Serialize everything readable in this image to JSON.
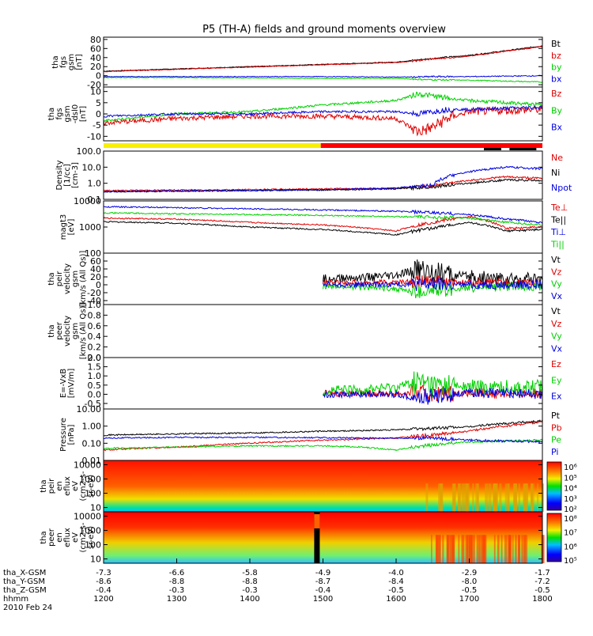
{
  "title": "P5 (TH-A) fields and ground moments overview",
  "colors": {
    "black": "#000000",
    "red": "#e00000",
    "green": "#00d000",
    "blue": "#0000e0",
    "yellow": "#f8f000",
    "brightred": "#ff0000"
  },
  "chart_data": [
    {
      "type": "line",
      "panel": "fgs_gsm",
      "ylabel_lines": [
        "tha",
        "fgs",
        "gsm",
        "[nT]"
      ],
      "ylim": [
        -25,
        85
      ],
      "yticks": [
        "80",
        "60",
        "40",
        "20",
        "0",
        "-20"
      ],
      "tick_values": [
        80,
        60,
        40,
        20,
        0,
        -20
      ],
      "legend": [
        {
          "name": "Bt",
          "color": "#000000"
        },
        {
          "name": "bz",
          "color": "#e00000"
        },
        {
          "name": "by",
          "color": "#00d000"
        },
        {
          "name": "bx",
          "color": "#0000e0"
        }
      ],
      "series": [
        {
          "name": "Bt",
          "x": [
            1200,
            1300,
            1400,
            1500,
            1600,
            1630,
            1650,
            1700,
            1750,
            1800
          ],
          "values": [
            10,
            15,
            20,
            25,
            30,
            35,
            38,
            45,
            55,
            66
          ]
        },
        {
          "name": "bz",
          "x": [
            1200,
            1300,
            1400,
            1500,
            1600,
            1630,
            1650,
            1700,
            1750,
            1800
          ],
          "values": [
            9,
            14,
            19,
            24,
            29,
            33,
            37,
            43,
            54,
            64
          ]
        },
        {
          "name": "by",
          "x": [
            1200,
            1300,
            1400,
            1500,
            1600,
            1630,
            1650,
            1700,
            1750,
            1800
          ],
          "values": [
            -4,
            -4,
            -5,
            -6,
            -6,
            -8,
            -9,
            -10,
            -12,
            -14
          ]
        },
        {
          "name": "bx",
          "x": [
            1200,
            1300,
            1400,
            1500,
            1600,
            1630,
            1650,
            1700,
            1750,
            1800
          ],
          "values": [
            -2,
            -2,
            -2,
            -2,
            -3,
            -3,
            -2,
            -2,
            -1,
            0
          ]
        }
      ]
    },
    {
      "type": "line",
      "panel": "fgs_dsl",
      "ylabel_lines": [
        "tha",
        "fgs",
        "gsm",
        "-dsl0",
        "[nT]"
      ],
      "ylim": [
        -12,
        12
      ],
      "yticks": [
        "10",
        "5",
        "0",
        "-5",
        "-10"
      ],
      "tick_values": [
        10,
        5,
        0,
        -5,
        -10
      ],
      "legend": [
        {
          "name": "Bz",
          "color": "#e00000"
        },
        {
          "name": "By",
          "color": "#00d000"
        },
        {
          "name": "Bx",
          "color": "#0000e0"
        }
      ],
      "series": [
        {
          "name": "Bz",
          "x": [
            1200,
            1300,
            1400,
            1500,
            1600,
            1630,
            1650,
            1670,
            1700,
            1800
          ],
          "values": [
            -4,
            -2,
            -1,
            -1,
            -2,
            -8,
            -6,
            -2,
            1,
            2
          ]
        },
        {
          "name": "By",
          "x": [
            1200,
            1300,
            1400,
            1500,
            1600,
            1630,
            1650,
            1670,
            1700,
            1800
          ],
          "values": [
            -3,
            0,
            1,
            4,
            6,
            9,
            8,
            7,
            6,
            4
          ]
        },
        {
          "name": "Bx",
          "x": [
            1200,
            1300,
            1400,
            1500,
            1600,
            1630,
            1650,
            1670,
            1700,
            1800
          ],
          "values": [
            -1,
            0,
            0,
            1,
            1,
            0,
            1,
            2,
            2,
            3
          ]
        }
      ]
    },
    {
      "type": "line",
      "panel": "density",
      "ylabel_lines": [
        "Density",
        "[1/cc]",
        "[cm-3]"
      ],
      "scale": "log",
      "ylim": [
        0.1,
        100
      ],
      "yticks": [
        "100.0",
        "10.0",
        "1.0",
        "0.1"
      ],
      "tick_values": [
        100,
        10,
        1,
        0.1
      ],
      "legend": [
        {
          "name": "Ne",
          "color": "#e00000"
        },
        {
          "name": "Ni",
          "color": "#000000"
        },
        {
          "name": "Npot",
          "color": "#0000e0"
        }
      ],
      "series": [
        {
          "name": "Ne",
          "x": [
            1200,
            1300,
            1400,
            1500,
            1600,
            1650,
            1700,
            1750,
            1800
          ],
          "values": [
            0.35,
            0.38,
            0.4,
            0.45,
            0.5,
            0.7,
            1.5,
            2.5,
            2
          ]
        },
        {
          "name": "Ni",
          "x": [
            1200,
            1300,
            1400,
            1500,
            1600,
            1650,
            1700,
            1750,
            1800
          ],
          "values": [
            0.3,
            0.32,
            0.35,
            0.38,
            0.45,
            0.6,
            1,
            1.6,
            1.5
          ]
        },
        {
          "name": "Npot",
          "x": [
            1200,
            1300,
            1400,
            1500,
            1600,
            1650,
            1700,
            1750,
            1800
          ],
          "values": [
            0.3,
            0.33,
            0.36,
            0.4,
            0.5,
            0.8,
            5,
            10,
            8
          ]
        }
      ]
    },
    {
      "type": "line",
      "panel": "temperature",
      "ylabel_lines": [
        "magt3",
        "[eV]"
      ],
      "scale": "log",
      "ylim": [
        100,
        10000
      ],
      "yticks": [
        "10000",
        "1000",
        "100"
      ],
      "tick_values": [
        10000,
        1000,
        100
      ],
      "legend": [
        {
          "name": "Te⊥",
          "color": "#e00000"
        },
        {
          "name": "Te||",
          "color": "#000000"
        },
        {
          "name": "Ti⊥",
          "color": "#0000e0"
        },
        {
          "name": "Ti||",
          "color": "#00d000"
        }
      ],
      "series": [
        {
          "name": "Te⊥",
          "x": [
            1200,
            1300,
            1400,
            1500,
            1600,
            1650,
            1700,
            1750,
            1800
          ],
          "values": [
            2200,
            2000,
            1500,
            1200,
            700,
            1500,
            2500,
            900,
            1000
          ]
        },
        {
          "name": "Te||",
          "x": [
            1200,
            1300,
            1400,
            1500,
            1600,
            1650,
            1700,
            1750,
            1800
          ],
          "values": [
            1600,
            1400,
            1000,
            800,
            500,
            900,
            1500,
            700,
            800
          ]
        },
        {
          "name": "Ti⊥",
          "x": [
            1200,
            1300,
            1400,
            1500,
            1600,
            1650,
            1700,
            1750,
            1800
          ],
          "values": [
            6000,
            5500,
            5000,
            4500,
            4000,
            3500,
            3000,
            2000,
            1500
          ]
        },
        {
          "name": "Ti||",
          "x": [
            1200,
            1300,
            1400,
            1500,
            1600,
            1650,
            1700,
            1750,
            1800
          ],
          "values": [
            3500,
            3200,
            3000,
            2800,
            2500,
            2400,
            2200,
            1500,
            1200
          ]
        }
      ]
    },
    {
      "type": "line",
      "panel": "peir_velocity",
      "ylabel_lines": [
        "tha",
        "peir",
        "velocity",
        "gsm",
        "[km/s (All Qs)]"
      ],
      "ylim": [
        -50,
        80
      ],
      "yticks": [
        "60",
        "40",
        "20",
        "0",
        "-20",
        "-40"
      ],
      "tick_values": [
        60,
        40,
        20,
        0,
        -20,
        -40
      ],
      "legend": [
        {
          "name": "Vt",
          "color": "#000000"
        },
        {
          "name": "Vz",
          "color": "#e00000"
        },
        {
          "name": "Vy",
          "color": "#00d000"
        },
        {
          "name": "Vx",
          "color": "#0000e0"
        }
      ],
      "series": [
        {
          "name": "Vt",
          "x": [
            1500,
            1550,
            1600,
            1630,
            1650,
            1700,
            1750,
            1800
          ],
          "values": [
            15,
            18,
            22,
            40,
            30,
            20,
            15,
            12
          ]
        },
        {
          "name": "Vz",
          "x": [
            1500,
            1550,
            1600,
            1630,
            1650,
            1700,
            1750,
            1800
          ],
          "values": [
            5,
            5,
            6,
            8,
            7,
            6,
            5,
            5
          ]
        },
        {
          "name": "Vy",
          "x": [
            1500,
            1550,
            1600,
            1630,
            1650,
            1700,
            1750,
            1800
          ],
          "values": [
            -5,
            -6,
            -10,
            -20,
            -15,
            -8,
            -5,
            -4
          ]
        },
        {
          "name": "Vx",
          "x": [
            1500,
            1550,
            1600,
            1630,
            1650,
            1700,
            1750,
            1800
          ],
          "values": [
            0,
            0,
            1,
            2,
            1,
            0,
            0,
            0
          ]
        }
      ]
    },
    {
      "type": "line",
      "panel": "peer_velocity",
      "ylabel_lines": [
        "tha",
        "peer",
        "velocity",
        "gsm",
        "[km/s (All Qs)]"
      ],
      "ylim": [
        0,
        1
      ],
      "yticks": [
        "1.0",
        "0.8",
        "0.6",
        "0.4",
        "0.2",
        "0.0"
      ],
      "tick_values": [
        1.0,
        0.8,
        0.6,
        0.4,
        0.2,
        0.0
      ],
      "legend": [
        {
          "name": "Vt",
          "color": "#000000"
        },
        {
          "name": "Vz",
          "color": "#e00000"
        },
        {
          "name": "Vy",
          "color": "#00d000"
        },
        {
          "name": "Vx",
          "color": "#0000e0"
        }
      ],
      "series": []
    },
    {
      "type": "line",
      "panel": "efield",
      "ylabel_lines": [
        "E=-VxB",
        "[mV/m]"
      ],
      "ylim": [
        -0.8,
        2.0
      ],
      "yticks": [
        "2.0",
        "1.5",
        "1.0",
        "0.5",
        "0.0",
        "-0.5"
      ],
      "tick_values": [
        2.0,
        1.5,
        1.0,
        0.5,
        0.0,
        -0.5
      ],
      "legend": [
        {
          "name": "Ez",
          "color": "#e00000"
        },
        {
          "name": "Ey",
          "color": "#00d000"
        },
        {
          "name": "Ex",
          "color": "#0000e0"
        }
      ],
      "series": [
        {
          "name": "Ez",
          "x": [
            1500,
            1600,
            1700,
            1800
          ],
          "values": [
            0.05,
            0.05,
            0.05,
            0.05
          ]
        },
        {
          "name": "Ey",
          "x": [
            1500,
            1550,
            1600,
            1630,
            1650,
            1700,
            1800
          ],
          "values": [
            0.2,
            0.25,
            0.4,
            0.7,
            0.5,
            0.4,
            0.35
          ]
        },
        {
          "name": "Ex",
          "x": [
            1500,
            1600,
            1630,
            1700,
            1800
          ],
          "values": [
            0,
            0,
            -0.2,
            0.1,
            0
          ]
        }
      ]
    },
    {
      "type": "line",
      "panel": "pressure",
      "ylabel_lines": [
        "Pressure",
        "[nPa]"
      ],
      "scale": "log",
      "ylim": [
        0.01,
        10
      ],
      "yticks": [
        "10.00",
        "1.00",
        "0.10",
        "0.01"
      ],
      "tick_values": [
        10,
        1,
        0.1,
        0.01
      ],
      "legend": [
        {
          "name": "Pt",
          "color": "#000000"
        },
        {
          "name": "Pb",
          "color": "#e00000"
        },
        {
          "name": "Pe",
          "color": "#00d000"
        },
        {
          "name": "Pi",
          "color": "#0000e0"
        }
      ],
      "series": [
        {
          "name": "Pt",
          "x": [
            1200,
            1300,
            1400,
            1500,
            1600,
            1700,
            1800
          ],
          "values": [
            0.3,
            0.35,
            0.4,
            0.5,
            0.6,
            0.9,
            2.0
          ]
        },
        {
          "name": "Pb",
          "x": [
            1200,
            1300,
            1400,
            1500,
            1600,
            1650,
            1700,
            1750,
            1800
          ],
          "values": [
            0.04,
            0.06,
            0.1,
            0.15,
            0.2,
            0.3,
            0.5,
            1.0,
            1.7
          ]
        },
        {
          "name": "Pe",
          "x": [
            1200,
            1300,
            1400,
            1500,
            1550,
            1600,
            1650,
            1700,
            1800
          ],
          "values": [
            0.05,
            0.06,
            0.07,
            0.07,
            0.06,
            0.04,
            0.08,
            0.12,
            0.15
          ]
        },
        {
          "name": "Pi",
          "x": [
            1200,
            1300,
            1400,
            1500,
            1600,
            1650,
            1700,
            1800
          ],
          "values": [
            0.2,
            0.22,
            0.22,
            0.21,
            0.2,
            0.2,
            0.15,
            0.12
          ]
        }
      ]
    },
    {
      "type": "heatmap",
      "panel": "peir_spectrogram",
      "ylabel_lines": [
        "tha",
        "peir",
        "en",
        "eflux",
        "eV",
        "(cm2-s-",
        "sr-eV)"
      ],
      "scale": "log",
      "ylim": [
        5,
        20000
      ],
      "yticks": [
        "10000",
        "1000",
        "100",
        "10"
      ],
      "tick_values": [
        10000,
        1000,
        100,
        10
      ],
      "colorbar_labels": [
        "10⁶",
        "10⁵",
        "10⁴",
        "10³",
        "10²"
      ]
    },
    {
      "type": "heatmap",
      "panel": "peer_spectrogram",
      "ylabel_lines": [
        "tha",
        "peer",
        "en",
        "eflux",
        "eV",
        "(cm2-s-",
        "sr-eV)"
      ],
      "scale": "log",
      "ylim": [
        5,
        20000
      ],
      "yticks": [
        "10000",
        "1000",
        "100",
        "10"
      ],
      "tick_values": [
        10000,
        1000,
        100,
        10
      ],
      "colorbar_labels": [
        "10⁸",
        "10⁷",
        "10⁶",
        "10⁵"
      ]
    }
  ],
  "xaxis": {
    "row_labels": [
      "tha_X-GSM",
      "tha_Y-GSM",
      "tha_Z-GSM",
      "hhmm",
      "2010 Feb 24"
    ],
    "x_values": [
      1200,
      1300,
      1400,
      1500,
      1600,
      1700,
      1800
    ],
    "columns": [
      {
        "x": "-7.3",
        "y": "-8.6",
        "z": "-0.4",
        "t": "1200"
      },
      {
        "x": "-6.6",
        "y": "-8.8",
        "z": "-0.3",
        "t": "1300"
      },
      {
        "x": "-5.8",
        "y": "-8.8",
        "z": "-0.3",
        "t": "1400"
      },
      {
        "x": "-4.9",
        "y": "-8.7",
        "z": "-0.4",
        "t": "1500"
      },
      {
        "x": "-4.0",
        "y": "-8.4",
        "z": "-0.5",
        "t": "1600"
      },
      {
        "x": "-2.9",
        "y": "-8.0",
        "z": "-0.5",
        "t": "1700"
      },
      {
        "x": "-1.7",
        "y": "-7.2",
        "z": "-0.5",
        "t": "1800"
      }
    ]
  }
}
